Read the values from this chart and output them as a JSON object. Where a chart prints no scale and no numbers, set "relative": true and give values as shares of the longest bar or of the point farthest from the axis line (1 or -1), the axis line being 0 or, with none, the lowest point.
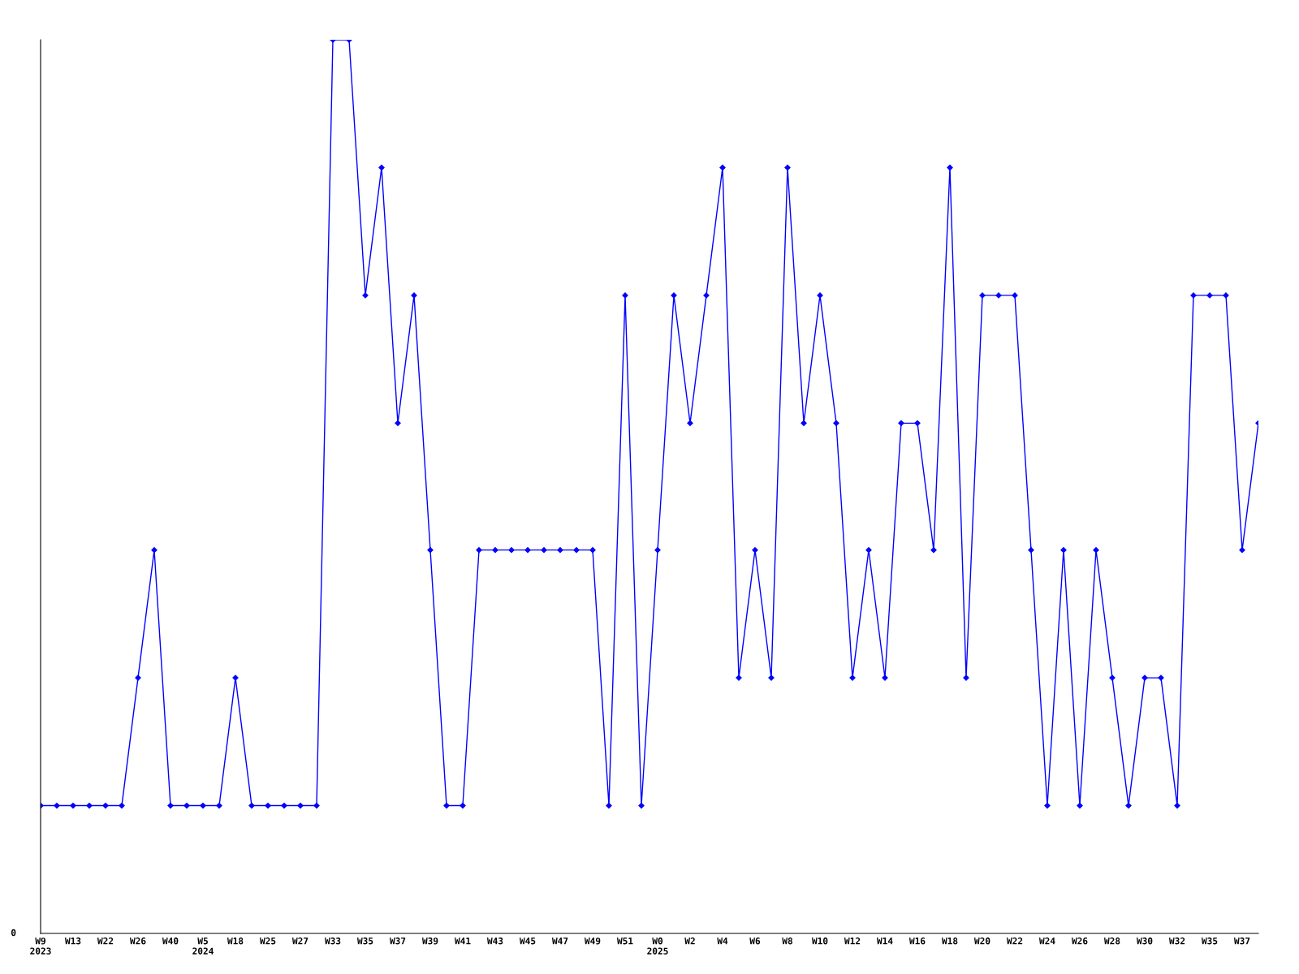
{
  "chart_data": {
    "type": "line",
    "relative": true,
    "marker": "diamond",
    "grid": false,
    "legend": false,
    "categories": [
      "W9\n2023",
      null,
      "W13",
      null,
      "W22",
      null,
      "W26",
      null,
      "W40",
      null,
      "W5\n2024",
      null,
      "W18",
      null,
      "W25",
      null,
      "W27",
      null,
      "W33",
      null,
      "W35",
      null,
      "W37",
      null,
      "W39",
      null,
      "W41",
      null,
      "W43",
      null,
      "W45",
      null,
      "W47",
      null,
      "W49",
      null,
      "W51",
      null,
      "W0\n2025",
      null,
      "W2",
      null,
      "W4",
      null,
      "W6",
      null,
      "W8",
      null,
      "W10",
      null,
      "W12",
      null,
      "W14",
      null,
      "W16",
      null,
      "W18",
      null,
      "W20",
      null,
      "W22",
      null,
      "W24",
      null,
      "W26",
      null,
      "W28",
      null,
      "W30",
      null,
      "W32",
      null,
      "W35",
      null,
      "W37",
      null
    ],
    "series": [
      {
        "color": "#0000ff",
        "values": [
          0.143,
          0.143,
          0.143,
          0.143,
          0.143,
          0.143,
          0.286,
          0.429,
          0.143,
          0.143,
          0.143,
          0.143,
          0.286,
          0.143,
          0.143,
          0.143,
          0.143,
          0.143,
          1,
          1,
          0.714,
          0.857,
          0.571,
          0.714,
          0.429,
          0.143,
          0.143,
          0.429,
          0.429,
          0.429,
          0.429,
          0.429,
          0.429,
          0.429,
          0.429,
          0.143,
          0.714,
          0.143,
          0.429,
          0.714,
          0.571,
          0.714,
          0.857,
          0.286,
          0.429,
          0.286,
          0.857,
          0.571,
          0.714,
          0.571,
          0.286,
          0.429,
          0.286,
          0.571,
          0.571,
          0.429,
          0.857,
          0.286,
          0.714,
          0.714,
          0.714,
          0.429,
          0.143,
          0.429,
          0.143,
          0.429,
          0.286,
          0.143,
          0.286,
          0.286,
          0.143,
          0.714,
          0.714,
          0.714,
          0.429,
          0.571
        ]
      }
    ],
    "annotations": [
      "0"
    ]
  }
}
